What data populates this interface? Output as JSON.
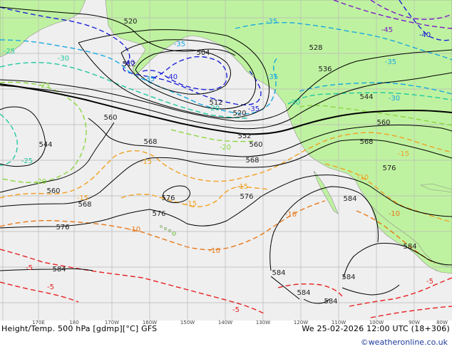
{
  "footer": {
    "title": "Height/Temp. 500 hPa [gdmp][°C] GFS",
    "datetime": "We 25-02-2026 12:00 UTC (18+306)",
    "credit": "©weatheronline.co.uk"
  },
  "lon_ticks": [
    "170E",
    "180",
    "170W",
    "160W",
    "150W",
    "140W",
    "130W",
    "120W",
    "110W",
    "100W",
    "90W",
    "80W"
  ],
  "colors": {
    "land": "#bff2a0",
    "sea": "#efefef",
    "grid": "#b9b9b9",
    "height_contour": "#000000",
    "temp_cold": "#1e22d8",
    "temp_mid": "#18a8e0",
    "temp_cool": "#22c8a0",
    "temp_warmish": "#8ad640",
    "temp_warm": "#f0a020",
    "temp_orange": "#e87818",
    "temp_hot": "#e82020"
  },
  "height_labels": [
    "520",
    "512",
    "504",
    "512",
    "520",
    "528",
    "536",
    "544",
    "552",
    "560",
    "560",
    "544",
    "560",
    "568",
    "568",
    "568",
    "576",
    "576",
    "576",
    "576",
    "584",
    "584",
    "584",
    "584",
    "584",
    "584",
    "584",
    "568",
    "576",
    "560"
  ],
  "temp_labels": [
    "-45",
    "-40",
    "-35",
    "-40",
    "-35",
    "-30",
    "-25",
    "-25",
    "-20",
    "-25",
    "-20",
    "-15",
    "-15",
    "-15",
    "-15",
    "-10",
    "-10",
    "-10",
    "-10",
    "-10",
    "-5",
    "-5",
    "-5",
    "-5",
    "-35",
    "-35",
    "-30",
    "-35",
    "-40",
    "-20",
    "-15",
    "-35",
    "-30"
  ]
}
